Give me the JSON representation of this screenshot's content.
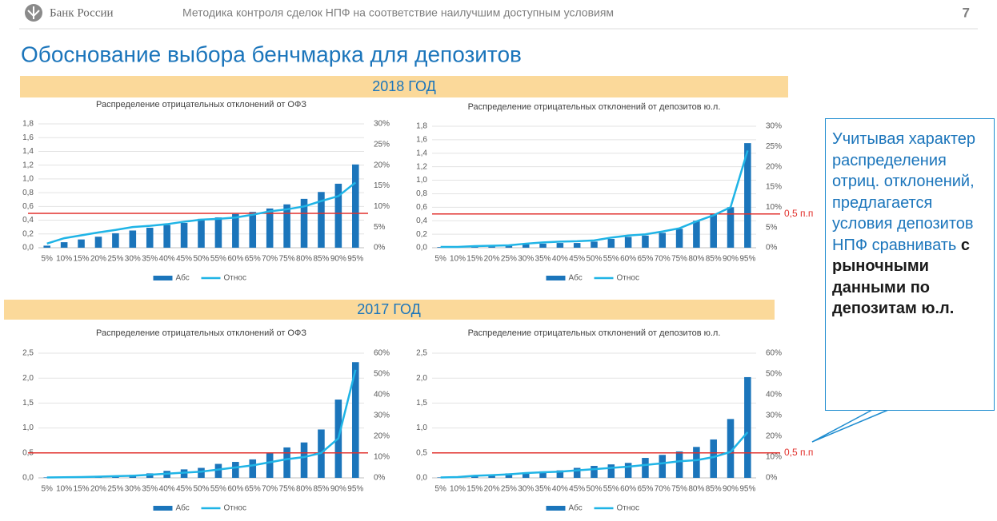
{
  "header": {
    "org": "Банк России",
    "subtitle": "Методика контроля сделок НПФ на соответствие наилучшим доступным условиям",
    "page": "7"
  },
  "title": "Обоснование выбора бенчмарка для депозитов",
  "sections": [
    "2018 ГОД",
    "2017 ГОД"
  ],
  "callout": {
    "text": "Учитывая характер распределения отриц. отклонений, предлагается условия депозитов НПФ сравнивать ",
    "emphasis": "с рыночными данными по депозитам ю.л."
  },
  "chart_data": [
    {
      "type": "combo",
      "title": "Распределение отрицательных отклонений от ОФЗ",
      "categories": [
        "5%",
        "10%",
        "15%",
        "20%",
        "25%",
        "30%",
        "35%",
        "40%",
        "45%",
        "50%",
        "55%",
        "60%",
        "65%",
        "70%",
        "75%",
        "80%",
        "85%",
        "90%",
        "95%"
      ],
      "series": [
        {
          "name": "Абс",
          "type": "bar",
          "color": "#1b75bb",
          "values": [
            0.03,
            0.08,
            0.12,
            0.16,
            0.21,
            0.25,
            0.29,
            0.33,
            0.36,
            0.42,
            0.44,
            0.49,
            0.52,
            0.57,
            0.63,
            0.71,
            0.81,
            0.93,
            1.21
          ]
        },
        {
          "name": "Относ",
          "type": "line",
          "axis": "y2",
          "color": "#1fb4e6",
          "values": [
            1,
            2.3,
            3,
            3.7,
            4.3,
            5,
            5.3,
            5.7,
            6.3,
            6.8,
            7,
            7.3,
            8,
            8.8,
            9.3,
            10,
            11.3,
            12.5,
            15.8
          ]
        }
      ],
      "ylim": [
        0,
        1.8
      ],
      "yticks": [
        {
          "value": 0,
          "label": "0,0"
        },
        {
          "value": 0.2,
          "label": "0,2"
        },
        {
          "value": 0.4,
          "label": "0,4"
        },
        {
          "value": 0.6,
          "label": "0,6"
        },
        {
          "value": 0.8,
          "label": "0,8"
        },
        {
          "value": 1,
          "label": "1,0"
        },
        {
          "value": 1.2,
          "label": "1,2"
        },
        {
          "value": 1.4,
          "label": "1,4"
        },
        {
          "value": 1.6,
          "label": "1,6"
        },
        {
          "value": 1.8,
          "label": "1,8"
        }
      ],
      "y2lim": [
        0,
        30
      ],
      "y2ticks": [
        {
          "value": 0,
          "label": "0%"
        },
        {
          "value": 5,
          "label": "5%"
        },
        {
          "value": 10,
          "label": "10%"
        },
        {
          "value": 15,
          "label": "15%"
        },
        {
          "value": 20,
          "label": "20%"
        },
        {
          "value": 25,
          "label": "25%"
        },
        {
          "value": 30,
          "label": "30%"
        }
      ],
      "grid": true,
      "reference_line": {
        "value": 0.5,
        "color": "#e2312d"
      }
    },
    {
      "type": "combo",
      "title": "Распределение отрицательных отклонений от депозитов ю.л.",
      "categories": [
        "5%",
        "10%",
        "15%",
        "20%",
        "25%",
        "30%",
        "35%",
        "40%",
        "45%",
        "50%",
        "55%",
        "60%",
        "65%",
        "70%",
        "75%",
        "80%",
        "85%",
        "90%",
        "95%"
      ],
      "series": [
        {
          "name": "Абс",
          "type": "bar",
          "color": "#1b75bb",
          "values": [
            0.01,
            0.01,
            0.02,
            0.03,
            0.03,
            0.05,
            0.06,
            0.07,
            0.07,
            0.09,
            0.13,
            0.16,
            0.18,
            0.22,
            0.28,
            0.4,
            0.5,
            0.6,
            1.55
          ]
        },
        {
          "name": "Относ",
          "type": "line",
          "axis": "y2",
          "color": "#1fb4e6",
          "values": [
            0.2,
            0.2,
            0.4,
            0.5,
            0.6,
            1,
            1.3,
            1.5,
            1.6,
            1.8,
            2.5,
            3,
            3.3,
            4,
            4.8,
            6.5,
            8,
            10,
            24
          ]
        }
      ],
      "ylim": [
        0,
        1.8
      ],
      "yticks": [
        {
          "value": 0,
          "label": "0,0"
        },
        {
          "value": 0.2,
          "label": "0,2"
        },
        {
          "value": 0.4,
          "label": "0,4"
        },
        {
          "value": 0.6,
          "label": "0,6"
        },
        {
          "value": 0.8,
          "label": "0,8"
        },
        {
          "value": 1,
          "label": "1,0"
        },
        {
          "value": 1.2,
          "label": "1,2"
        },
        {
          "value": 1.4,
          "label": "1,4"
        },
        {
          "value": 1.6,
          "label": "1,6"
        },
        {
          "value": 1.8,
          "label": "1,8"
        }
      ],
      "y2lim": [
        0,
        30
      ],
      "y2ticks": [
        {
          "value": 0,
          "label": "0%"
        },
        {
          "value": 5,
          "label": "5%"
        },
        {
          "value": 10,
          "label": "10%"
        },
        {
          "value": 15,
          "label": "15%"
        },
        {
          "value": 20,
          "label": "20%"
        },
        {
          "value": 25,
          "label": "25%"
        },
        {
          "value": 30,
          "label": "30%"
        }
      ],
      "grid": true,
      "reference_line": {
        "value": 0.5,
        "color": "#e2312d",
        "label": "0,5 п.п"
      }
    },
    {
      "type": "combo",
      "title": "Распределение отрицательных отклонений от ОФЗ",
      "categories": [
        "5%",
        "10%",
        "15%",
        "20%",
        "25%",
        "30%",
        "35%",
        "40%",
        "45%",
        "50%",
        "55%",
        "60%",
        "65%",
        "70%",
        "75%",
        "80%",
        "85%",
        "90%",
        "95%"
      ],
      "series": [
        {
          "name": "Абс",
          "type": "bar",
          "color": "#1b75bb",
          "values": [
            0.01,
            0.01,
            0.02,
            0.03,
            0.04,
            0.06,
            0.09,
            0.14,
            0.17,
            0.2,
            0.28,
            0.32,
            0.37,
            0.49,
            0.61,
            0.71,
            0.97,
            1.57,
            2.32
          ]
        },
        {
          "name": "Относ",
          "type": "line",
          "axis": "y2",
          "color": "#1fb4e6",
          "values": [
            0.2,
            0.3,
            0.4,
            0.6,
            0.8,
            1,
            1.5,
            2,
            2.5,
            3,
            4,
            5,
            6,
            7.5,
            9,
            10,
            12,
            19,
            52
          ]
        }
      ],
      "ylim": [
        0,
        2.5
      ],
      "yticks": [
        {
          "value": 0,
          "label": "0,0"
        },
        {
          "value": 0.5,
          "label": "0,5"
        },
        {
          "value": 1,
          "label": "1,0"
        },
        {
          "value": 1.5,
          "label": "1,5"
        },
        {
          "value": 2,
          "label": "2,0"
        },
        {
          "value": 2.5,
          "label": "2,5"
        }
      ],
      "y2lim": [
        0,
        60
      ],
      "y2ticks": [
        {
          "value": 0,
          "label": "0%"
        },
        {
          "value": 10,
          "label": "10%"
        },
        {
          "value": 20,
          "label": "20%"
        },
        {
          "value": 30,
          "label": "30%"
        },
        {
          "value": 40,
          "label": "40%"
        },
        {
          "value": 50,
          "label": "50%"
        },
        {
          "value": 60,
          "label": "60%"
        }
      ],
      "grid": true,
      "reference_line": {
        "value": 0.5,
        "color": "#e2312d"
      }
    },
    {
      "type": "combo",
      "title": "Распределение отрицательных отклонений от депозитов ю.л.",
      "categories": [
        "5%",
        "10%",
        "15%",
        "20%",
        "25%",
        "30%",
        "35%",
        "40%",
        "45%",
        "50%",
        "55%",
        "60%",
        "65%",
        "70%",
        "75%",
        "80%",
        "85%",
        "90%",
        "95%"
      ],
      "series": [
        {
          "name": "Абс",
          "type": "bar",
          "color": "#1b75bb",
          "values": [
            0.01,
            0.02,
            0.05,
            0.07,
            0.09,
            0.11,
            0.13,
            0.15,
            0.2,
            0.24,
            0.27,
            0.3,
            0.4,
            0.46,
            0.53,
            0.62,
            0.77,
            1.18,
            2.02
          ]
        },
        {
          "name": "Относ",
          "type": "line",
          "axis": "y2",
          "color": "#1fb4e6",
          "values": [
            0.2,
            0.4,
            1,
            1.3,
            1.7,
            2.3,
            2.7,
            3,
            3.6,
            4.2,
            4.8,
            5.4,
            6.2,
            7,
            8,
            8.5,
            10,
            12.5,
            22
          ]
        }
      ],
      "ylim": [
        0,
        2.5
      ],
      "yticks": [
        {
          "value": 0,
          "label": "0,0"
        },
        {
          "value": 0.5,
          "label": "0,5"
        },
        {
          "value": 1,
          "label": "1,0"
        },
        {
          "value": 1.5,
          "label": "1,5"
        },
        {
          "value": 2,
          "label": "2,0"
        },
        {
          "value": 2.5,
          "label": "2,5"
        }
      ],
      "y2lim": [
        0,
        60
      ],
      "y2ticks": [
        {
          "value": 0,
          "label": "0%"
        },
        {
          "value": 10,
          "label": "10%"
        },
        {
          "value": 20,
          "label": "20%"
        },
        {
          "value": 30,
          "label": "30%"
        },
        {
          "value": 40,
          "label": "40%"
        },
        {
          "value": 50,
          "label": "50%"
        },
        {
          "value": 60,
          "label": "60%"
        }
      ],
      "grid": true,
      "reference_line": {
        "value": 0.5,
        "color": "#e2312d",
        "label": "0,5 п.п"
      }
    }
  ]
}
